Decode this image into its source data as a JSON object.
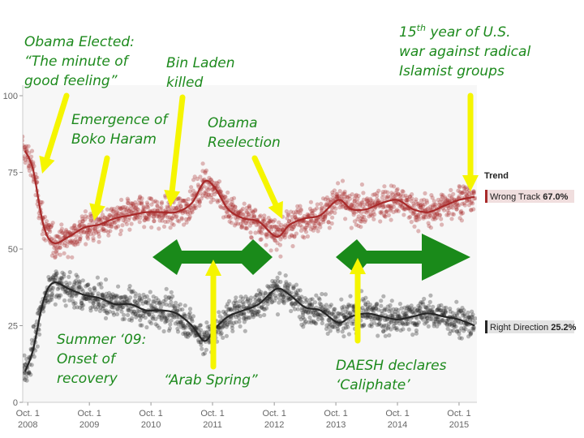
{
  "chart_data": {
    "type": "scatter",
    "title": "",
    "xlabel": "",
    "ylabel": "",
    "ylim": [
      0,
      100
    ],
    "xlim": [
      "2008-09-01",
      "2016-01-15"
    ],
    "grid": false,
    "yticks": [
      "0",
      "25",
      "50",
      "75",
      "100"
    ],
    "xticks": [
      {
        "date": "2008-10-01",
        "line1": "Oct. 1",
        "line2": "2008"
      },
      {
        "date": "2009-10-01",
        "line1": "Oct. 1",
        "line2": "2009"
      },
      {
        "date": "2010-10-01",
        "line1": "Oct. 1",
        "line2": "2010"
      },
      {
        "date": "2011-10-01",
        "line1": "Oct. 1",
        "line2": "2011"
      },
      {
        "date": "2012-10-01",
        "line1": "Oct. 1",
        "line2": "2012"
      },
      {
        "date": "2013-10-01",
        "line1": "Oct. 1",
        "line2": "2013"
      },
      {
        "date": "2014-10-01",
        "line1": "Oct. 1",
        "line2": "2014"
      },
      {
        "date": "2015-10-01",
        "line1": "Oct. 1",
        "line2": "2015"
      }
    ],
    "legend": {
      "title": "Trend",
      "placement": "right"
    },
    "series": [
      {
        "name": "Wrong Track",
        "value_label": "67.0%",
        "color": "#a82a2a",
        "trend": [
          {
            "x": "2008-09-15",
            "y": 82
          },
          {
            "x": "2008-11-01",
            "y": 76
          },
          {
            "x": "2009-01-01",
            "y": 58
          },
          {
            "x": "2009-03-01",
            "y": 52
          },
          {
            "x": "2009-06-01",
            "y": 54
          },
          {
            "x": "2009-09-01",
            "y": 57
          },
          {
            "x": "2009-12-01",
            "y": 58
          },
          {
            "x": "2010-03-01",
            "y": 60
          },
          {
            "x": "2010-06-01",
            "y": 61
          },
          {
            "x": "2010-09-01",
            "y": 62
          },
          {
            "x": "2010-12-01",
            "y": 62
          },
          {
            "x": "2011-03-01",
            "y": 62
          },
          {
            "x": "2011-06-01",
            "y": 65
          },
          {
            "x": "2011-08-15",
            "y": 72
          },
          {
            "x": "2011-10-15",
            "y": 70
          },
          {
            "x": "2012-01-01",
            "y": 63
          },
          {
            "x": "2012-04-01",
            "y": 60
          },
          {
            "x": "2012-07-01",
            "y": 59
          },
          {
            "x": "2012-10-15",
            "y": 54
          },
          {
            "x": "2013-01-01",
            "y": 58
          },
          {
            "x": "2013-04-01",
            "y": 60
          },
          {
            "x": "2013-07-01",
            "y": 61
          },
          {
            "x": "2013-10-15",
            "y": 66
          },
          {
            "x": "2014-01-01",
            "y": 63
          },
          {
            "x": "2014-04-01",
            "y": 63
          },
          {
            "x": "2014-07-01",
            "y": 65
          },
          {
            "x": "2014-10-01",
            "y": 66
          },
          {
            "x": "2015-01-01",
            "y": 63
          },
          {
            "x": "2015-04-01",
            "y": 62
          },
          {
            "x": "2015-07-01",
            "y": 64
          },
          {
            "x": "2015-10-01",
            "y": 66
          },
          {
            "x": "2016-01-01",
            "y": 67
          }
        ]
      },
      {
        "name": "Right Direction",
        "value_label": "25.2%",
        "color": "#262626",
        "trend": [
          {
            "x": "2008-09-15",
            "y": 10
          },
          {
            "x": "2008-11-01",
            "y": 17
          },
          {
            "x": "2009-01-01",
            "y": 33
          },
          {
            "x": "2009-03-01",
            "y": 39
          },
          {
            "x": "2009-06-01",
            "y": 37
          },
          {
            "x": "2009-09-01",
            "y": 35
          },
          {
            "x": "2009-12-01",
            "y": 34
          },
          {
            "x": "2010-03-01",
            "y": 32
          },
          {
            "x": "2010-06-01",
            "y": 32
          },
          {
            "x": "2010-09-01",
            "y": 30
          },
          {
            "x": "2010-12-01",
            "y": 30
          },
          {
            "x": "2011-03-01",
            "y": 29
          },
          {
            "x": "2011-06-01",
            "y": 25
          },
          {
            "x": "2011-08-15",
            "y": 20
          },
          {
            "x": "2011-10-15",
            "y": 24
          },
          {
            "x": "2012-01-01",
            "y": 28
          },
          {
            "x": "2012-04-01",
            "y": 30
          },
          {
            "x": "2012-07-01",
            "y": 32
          },
          {
            "x": "2012-10-15",
            "y": 37
          },
          {
            "x": "2013-01-01",
            "y": 35
          },
          {
            "x": "2013-04-01",
            "y": 31
          },
          {
            "x": "2013-07-01",
            "y": 30
          },
          {
            "x": "2013-10-15",
            "y": 26
          },
          {
            "x": "2014-01-01",
            "y": 28
          },
          {
            "x": "2014-04-01",
            "y": 29
          },
          {
            "x": "2014-07-01",
            "y": 28
          },
          {
            "x": "2014-10-01",
            "y": 27
          },
          {
            "x": "2015-01-01",
            "y": 28
          },
          {
            "x": "2015-04-01",
            "y": 29
          },
          {
            "x": "2015-07-01",
            "y": 28
          },
          {
            "x": "2015-10-01",
            "y": 27
          },
          {
            "x": "2016-01-01",
            "y": 25
          }
        ]
      }
    ],
    "annotations": [
      {
        "lines": [
          "Obama Elected:",
          "“The minute of",
          "good feeling”"
        ]
      },
      {
        "lines": [
          "Bin Laden",
          "killed"
        ]
      },
      {
        "lines": [
          "Emergence of",
          "Boko Haram"
        ]
      },
      {
        "lines": [
          "Obama",
          "Reelection"
        ]
      },
      {
        "lines": [
          "15th year of U.S.",
          "war against radical",
          "Islamist groups"
        ]
      },
      {
        "lines": [
          "Summer ‘09:",
          "Onset of",
          "recovery"
        ]
      },
      {
        "lines": [
          "“Arab Spring”"
        ]
      },
      {
        "lines": [
          "DAESH declares",
          "‘Caliphate’"
        ]
      }
    ],
    "arrow_colors": {
      "pointer": "#f5f500",
      "period": "#1a8a1a",
      "text": "#1d8a1d"
    }
  }
}
